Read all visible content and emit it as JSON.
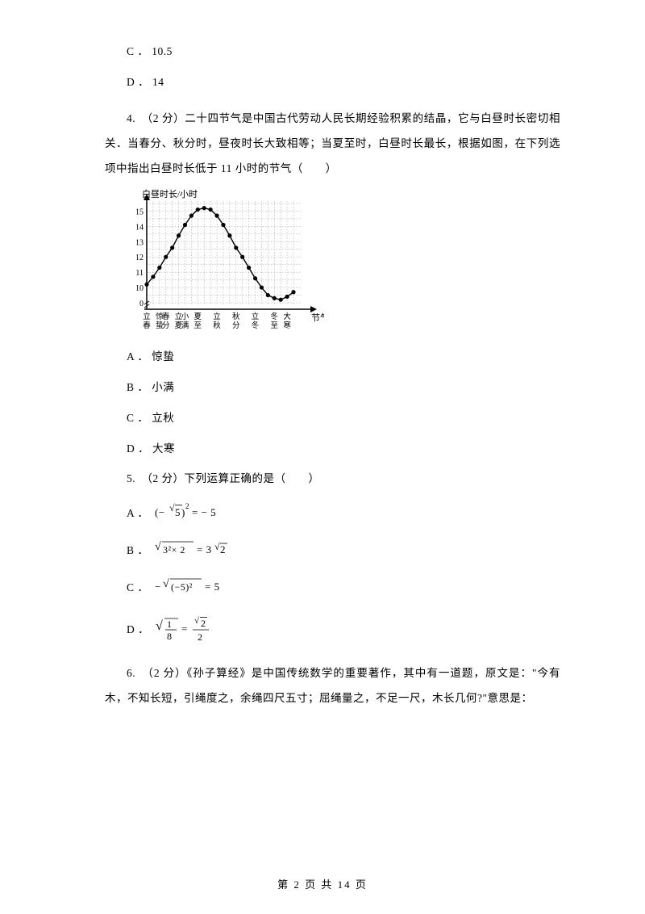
{
  "items": {
    "c_opt": "C ． 10.5",
    "d_opt": "D ． 14"
  },
  "q4": {
    "text": "4.　（2 分）二十四节气是中国古代劳动人民长期经验积累的结晶，它与白昼时长密切相关．当春分、秋分时，昼夜时长大致相等；当夏至时，白昼时长最长，根据如图，在下列选项中指出白昼时长低于 11 小时的节气（　　）",
    "optA": "A ． 惊蛰",
    "optB": "B ． 小满",
    "optC": "C ． 立秋",
    "optD": "D ． 大寒"
  },
  "q5": {
    "text": "5.　（2 分）下列运算正确的是（　　）",
    "labelA": "A ．",
    "labelB": "B ．",
    "labelC": "C ．",
    "labelD": "D ．",
    "eqA_left": "(−√5)",
    "eqA_sup": "2",
    "eqA_right": " = −5",
    "eqB_inner": "3²×2",
    "eqB_rhs": " = 3√2",
    "eqC_prefix": "−",
    "eqC_inner": "(−5)²",
    "eqC_rhs": " = 5",
    "eqD_inner": "1/8",
    "eqD_rhs_num": "√2",
    "eqD_rhs_den": "2"
  },
  "q6": {
    "text": "6.　（2 分）《孙子算经》是中国传统数学的重要著作，其中有一道题，原文是：\"今有木，不知长短，引绳度之，余绳四尺五寸；屈绳量之，不足一尺，木长几何?\"意思是："
  },
  "footer": "第 2 页 共 14 页",
  "chart": {
    "yLabel": "白昼时长/小时",
    "xLabel": "节气",
    "ylim": [
      0,
      15
    ],
    "yticks": [
      10,
      11,
      12,
      13,
      14,
      15
    ],
    "xticksTop": [
      "立",
      "惊",
      "春",
      "立",
      "小",
      "夏",
      "立",
      "秋",
      "立",
      "冬",
      "大"
    ],
    "xticksBot": [
      "春",
      "蛰",
      "分",
      "夏",
      "满",
      "至",
      "秋",
      "分",
      "冬",
      "至",
      "寒"
    ],
    "xticks_k": [
      0,
      2,
      3,
      5,
      6,
      8,
      11,
      14,
      17,
      20,
      22
    ],
    "values": [
      10.2,
      10.7,
      11.3,
      12.0,
      12.6,
      13.4,
      14.1,
      14.7,
      15.1,
      15.2,
      15.1,
      14.7,
      14.1,
      13.4,
      12.6,
      12.0,
      11.3,
      10.6,
      10.0,
      9.5,
      9.3,
      9.2,
      9.4,
      9.7
    ],
    "axis_color": "#000000",
    "grid_color": "#9a9a9a",
    "data_color": "#000000",
    "bg": "#ffffff"
  }
}
